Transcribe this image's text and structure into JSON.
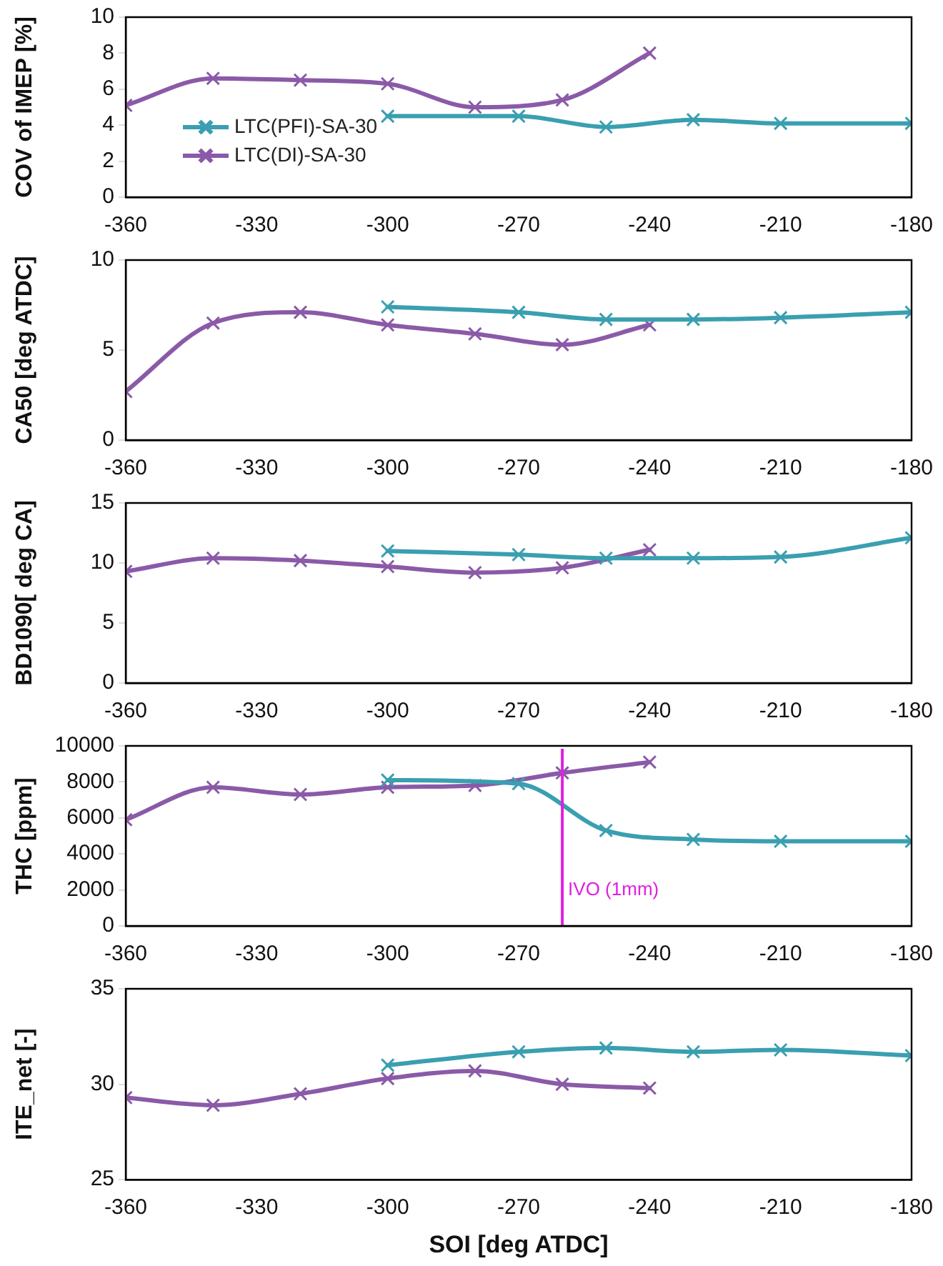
{
  "chart_data": [
    {
      "type": "line",
      "ylabel": "COV of IMEP [%]",
      "xlim": [
        -360,
        -180
      ],
      "xticks": [
        -360,
        -330,
        -300,
        -270,
        -240,
        -210,
        -180
      ],
      "ylim": [
        0,
        10
      ],
      "yticks": [
        0,
        2,
        4,
        6,
        8,
        10
      ],
      "grid": false,
      "legend": "left",
      "series": [
        {
          "name": "LTC(PFI)-SA-30",
          "color": "#3a9fb0",
          "marker": "cross",
          "x": [
            -300,
            -270,
            -250,
            -230,
            -210,
            -180
          ],
          "values": [
            4.5,
            4.5,
            3.9,
            4.3,
            4.1,
            4.1
          ]
        },
        {
          "name": "LTC(DI)-SA-30",
          "color": "#8a5aa8",
          "marker": "cross",
          "x": [
            -360,
            -340,
            -320,
            -300,
            -280,
            -260,
            -240
          ],
          "values": [
            5.1,
            6.6,
            6.5,
            6.3,
            5.0,
            5.4,
            8.0
          ]
        }
      ]
    },
    {
      "type": "line",
      "ylabel": "CA50 [deg ATDC]",
      "xlim": [
        -360,
        -180
      ],
      "xticks": [
        -360,
        -330,
        -300,
        -270,
        -240,
        -210,
        -180
      ],
      "ylim": [
        0,
        10
      ],
      "yticks": [
        0,
        5,
        10
      ],
      "grid": false,
      "legend": false,
      "series": [
        {
          "color": "#3a9fb0",
          "marker": "cross",
          "x": [
            -300,
            -270,
            -250,
            -230,
            -210,
            -180
          ],
          "values": [
            7.4,
            7.1,
            6.7,
            6.7,
            6.8,
            7.1
          ]
        },
        {
          "color": "#8a5aa8",
          "marker": "cross",
          "x": [
            -360,
            -340,
            -320,
            -300,
            -280,
            -260,
            -240
          ],
          "values": [
            2.7,
            6.5,
            7.1,
            6.4,
            5.9,
            5.3,
            6.4
          ]
        }
      ]
    },
    {
      "type": "line",
      "ylabel": "BD1090[ deg CA]",
      "xlim": [
        -360,
        -180
      ],
      "xticks": [
        -360,
        -330,
        -300,
        -270,
        -240,
        -210,
        -180
      ],
      "ylim": [
        0,
        15
      ],
      "yticks": [
        0,
        5,
        10,
        15
      ],
      "grid": false,
      "legend": false,
      "series": [
        {
          "color": "#3a9fb0",
          "marker": "cross",
          "x": [
            -300,
            -270,
            -250,
            -230,
            -210,
            -180
          ],
          "values": [
            11.0,
            10.7,
            10.4,
            10.4,
            10.5,
            12.1
          ]
        },
        {
          "color": "#8a5aa8",
          "marker": "cross",
          "x": [
            -360,
            -340,
            -320,
            -300,
            -280,
            -260,
            -240
          ],
          "values": [
            9.3,
            10.4,
            10.2,
            9.7,
            9.2,
            9.6,
            11.1
          ]
        }
      ]
    },
    {
      "type": "line",
      "ylabel": "THC [ppm]",
      "xlim": [
        -360,
        -180
      ],
      "xticks": [
        -360,
        -330,
        -300,
        -270,
        -240,
        -210,
        -180
      ],
      "ylim": [
        0,
        10000
      ],
      "yticks": [
        0,
        2000,
        4000,
        6000,
        8000,
        10000
      ],
      "grid": false,
      "legend": false,
      "ref_lines": [
        {
          "axis": "x",
          "value": -260,
          "label": "IVO (1mm)",
          "color": "#e020e0"
        }
      ],
      "series": [
        {
          "color": "#3a9fb0",
          "marker": "cross",
          "x": [
            -300,
            -270,
            -250,
            -230,
            -210,
            -180
          ],
          "values": [
            8100,
            7900,
            5300,
            4800,
            4700,
            4700
          ]
        },
        {
          "color": "#8a5aa8",
          "marker": "cross",
          "x": [
            -360,
            -340,
            -320,
            -300,
            -280,
            -260,
            -240
          ],
          "values": [
            5900,
            7700,
            7300,
            7700,
            7800,
            8500,
            9100
          ]
        }
      ]
    },
    {
      "type": "line",
      "xlabel": "SOI [deg ATDC]",
      "ylabel": "ITE_net [-]",
      "xlim": [
        -360,
        -180
      ],
      "xticks": [
        -360,
        -330,
        -300,
        -270,
        -240,
        -210,
        -180
      ],
      "ylim": [
        25,
        35
      ],
      "yticks": [
        25,
        30,
        35
      ],
      "grid": false,
      "legend": false,
      "series": [
        {
          "color": "#3a9fb0",
          "marker": "cross",
          "x": [
            -300,
            -270,
            -250,
            -230,
            -210,
            -180
          ],
          "values": [
            31.0,
            31.7,
            31.9,
            31.7,
            31.8,
            31.5
          ]
        },
        {
          "color": "#8a5aa8",
          "marker": "cross",
          "x": [
            -360,
            -340,
            -320,
            -300,
            -280,
            -260,
            -240
          ],
          "values": [
            29.3,
            28.9,
            29.5,
            30.3,
            30.7,
            30.0,
            29.8
          ]
        }
      ]
    }
  ]
}
